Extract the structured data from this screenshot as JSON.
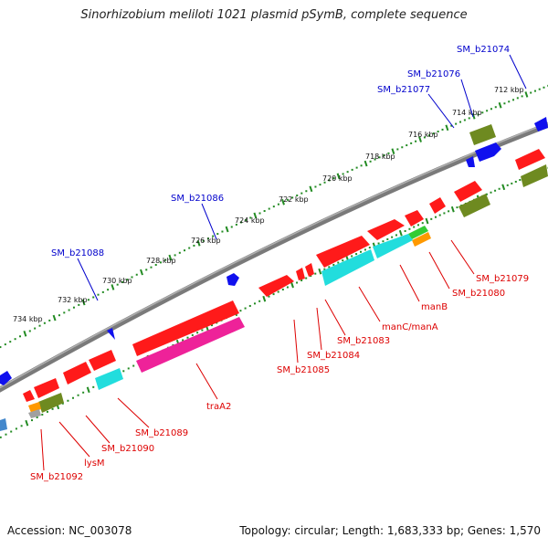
{
  "title": "Sinorhizobium meliloti 1021 plasmid pSymB, complete sequence",
  "footer": {
    "accession": "Accession: NC_003078",
    "topology": "Topology: circular; Length: 1,683,333 bp; Genes: 1,570"
  },
  "colors": {
    "backbone": "#808080",
    "red_gene": "#ff1a1a",
    "cyan_gene": "#22dddd",
    "magenta_gene": "#ee2299",
    "olive_gene": "#6e8a20",
    "blue_gene": "#1010ee",
    "orange_gene": "#ff9900",
    "green_gene": "#33cc33",
    "tick_green": "#228b22",
    "label_blue": "#0000cc",
    "label_red": "#dd0000"
  },
  "scale_labels": [
    "712 kbp",
    "714 kbp",
    "716 kbp",
    "718 kbp",
    "720 kbp",
    "722 kbp",
    "724 kbp",
    "726 kbp",
    "728 kbp",
    "730 kbp",
    "732 kbp",
    "734 kbp"
  ],
  "gene_labels_top": [
    "SM_b21074",
    "SM_b21076",
    "SM_b21077",
    "SM_b21086",
    "SM_b21088"
  ],
  "gene_labels_bottom": [
    "SM_b21079",
    "SM_b21080",
    "manB",
    "manC/manA",
    "SM_b21083",
    "SM_b21084",
    "SM_b21085",
    "traA2",
    "SM_b21089",
    "SM_b21090",
    "lysM",
    "SM_b21092"
  ]
}
